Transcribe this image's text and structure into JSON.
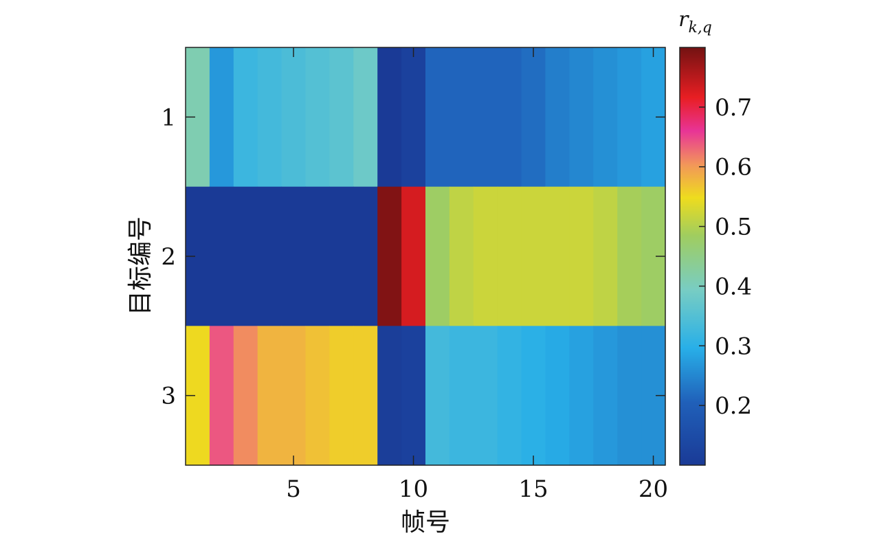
{
  "chart_data": {
    "type": "heatmap",
    "xlabel": "帧号",
    "ylabel": "目标编号",
    "colorbar_label": "r_{k,q}",
    "colorbar_label_base": "r",
    "colorbar_label_sub": "k,q",
    "x": [
      1,
      2,
      3,
      4,
      5,
      6,
      7,
      8,
      9,
      10,
      11,
      12,
      13,
      14,
      15,
      16,
      17,
      18,
      19,
      20
    ],
    "y": [
      1,
      2,
      3
    ],
    "xlim": [
      0.5,
      20.5
    ],
    "ylim": [
      0.5,
      3.5
    ],
    "x_ticks": [
      5,
      10,
      15,
      20
    ],
    "y_ticks": [
      1,
      2,
      3
    ],
    "colorbar_ticks": [
      0.2,
      0.3,
      0.4,
      0.5,
      0.6,
      0.7
    ],
    "colorbar_range": [
      0.1,
      0.8
    ],
    "values": [
      [
        0.41,
        0.27,
        0.32,
        0.33,
        0.34,
        0.35,
        0.36,
        0.38,
        0.1,
        0.12,
        0.21,
        0.21,
        0.21,
        0.21,
        0.22,
        0.24,
        0.25,
        0.26,
        0.27,
        0.28
      ],
      [
        0.1,
        0.1,
        0.1,
        0.1,
        0.1,
        0.1,
        0.1,
        0.1,
        0.79,
        0.73,
        0.48,
        0.51,
        0.52,
        0.52,
        0.52,
        0.52,
        0.52,
        0.51,
        0.49,
        0.48
      ],
      [
        0.55,
        0.64,
        0.61,
        0.58,
        0.58,
        0.57,
        0.56,
        0.56,
        0.11,
        0.12,
        0.33,
        0.32,
        0.32,
        0.31,
        0.3,
        0.29,
        0.28,
        0.27,
        0.26,
        0.26
      ]
    ]
  }
}
